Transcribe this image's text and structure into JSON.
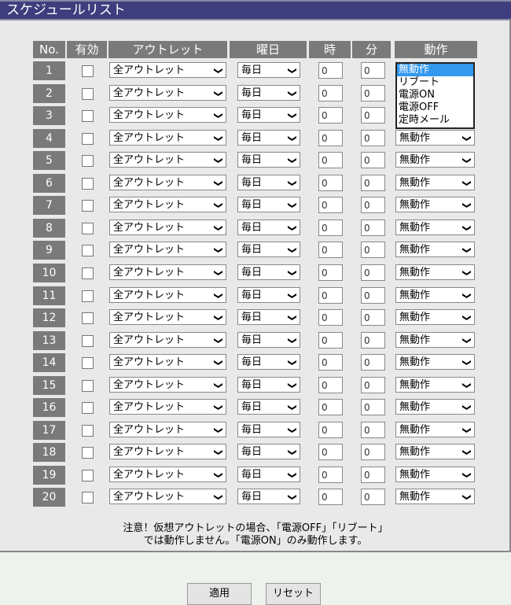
{
  "title": "スケジュールリスト",
  "headers": {
    "no": "No.",
    "enabled": "有効",
    "outlet": "アウトレット",
    "day": "曜日",
    "hour": "時",
    "minute": "分",
    "action": "動作"
  },
  "rows": [
    {
      "no": "1",
      "enabled": false,
      "outlet": "全アウトレット",
      "day": "毎日",
      "hour": "0",
      "minute": "0",
      "action": "無動作"
    },
    {
      "no": "2",
      "enabled": false,
      "outlet": "全アウトレット",
      "day": "毎日",
      "hour": "0",
      "minute": "0",
      "action": "無動作"
    },
    {
      "no": "3",
      "enabled": false,
      "outlet": "全アウトレット",
      "day": "毎日",
      "hour": "0",
      "minute": "0",
      "action": "無動作"
    },
    {
      "no": "4",
      "enabled": false,
      "outlet": "全アウトレット",
      "day": "毎日",
      "hour": "0",
      "minute": "0",
      "action": "無動作"
    },
    {
      "no": "5",
      "enabled": false,
      "outlet": "全アウトレット",
      "day": "毎日",
      "hour": "0",
      "minute": "0",
      "action": "無動作"
    },
    {
      "no": "6",
      "enabled": false,
      "outlet": "全アウトレット",
      "day": "毎日",
      "hour": "0",
      "minute": "0",
      "action": "無動作"
    },
    {
      "no": "7",
      "enabled": false,
      "outlet": "全アウトレット",
      "day": "毎日",
      "hour": "0",
      "minute": "0",
      "action": "無動作"
    },
    {
      "no": "8",
      "enabled": false,
      "outlet": "全アウトレット",
      "day": "毎日",
      "hour": "0",
      "minute": "0",
      "action": "無動作"
    },
    {
      "no": "9",
      "enabled": false,
      "outlet": "全アウトレット",
      "day": "毎日",
      "hour": "0",
      "minute": "0",
      "action": "無動作"
    },
    {
      "no": "10",
      "enabled": false,
      "outlet": "全アウトレット",
      "day": "毎日",
      "hour": "0",
      "minute": "0",
      "action": "無動作"
    },
    {
      "no": "11",
      "enabled": false,
      "outlet": "全アウトレット",
      "day": "毎日",
      "hour": "0",
      "minute": "0",
      "action": "無動作"
    },
    {
      "no": "12",
      "enabled": false,
      "outlet": "全アウトレット",
      "day": "毎日",
      "hour": "0",
      "minute": "0",
      "action": "無動作"
    },
    {
      "no": "13",
      "enabled": false,
      "outlet": "全アウトレット",
      "day": "毎日",
      "hour": "0",
      "minute": "0",
      "action": "無動作"
    },
    {
      "no": "14",
      "enabled": false,
      "outlet": "全アウトレット",
      "day": "毎日",
      "hour": "0",
      "minute": "0",
      "action": "無動作"
    },
    {
      "no": "15",
      "enabled": false,
      "outlet": "全アウトレット",
      "day": "毎日",
      "hour": "0",
      "minute": "0",
      "action": "無動作"
    },
    {
      "no": "16",
      "enabled": false,
      "outlet": "全アウトレット",
      "day": "毎日",
      "hour": "0",
      "minute": "0",
      "action": "無動作"
    },
    {
      "no": "17",
      "enabled": false,
      "outlet": "全アウトレット",
      "day": "毎日",
      "hour": "0",
      "minute": "0",
      "action": "無動作"
    },
    {
      "no": "18",
      "enabled": false,
      "outlet": "全アウトレット",
      "day": "毎日",
      "hour": "0",
      "minute": "0",
      "action": "無動作"
    },
    {
      "no": "19",
      "enabled": false,
      "outlet": "全アウトレット",
      "day": "毎日",
      "hour": "0",
      "minute": "0",
      "action": "無動作"
    },
    {
      "no": "20",
      "enabled": false,
      "outlet": "全アウトレット",
      "day": "毎日",
      "hour": "0",
      "minute": "0",
      "action": "無動作"
    }
  ],
  "action_dropdown": {
    "open_row": "1",
    "selected": "無動作",
    "options": [
      "無動作",
      "リブート",
      "電源ON",
      "電源OFF",
      "定時メール"
    ]
  },
  "note": [
    "注意！仮想アウトレットの場合、「電源OFF」「リブート」",
    "では動作しません。「電源ON」のみ動作します。"
  ],
  "buttons": {
    "apply": "適用",
    "reset": "リセット"
  },
  "colors": {
    "title_bar": "#3e3e7e",
    "header_bg": "#7a7a7a",
    "highlight": "#3399ee"
  }
}
